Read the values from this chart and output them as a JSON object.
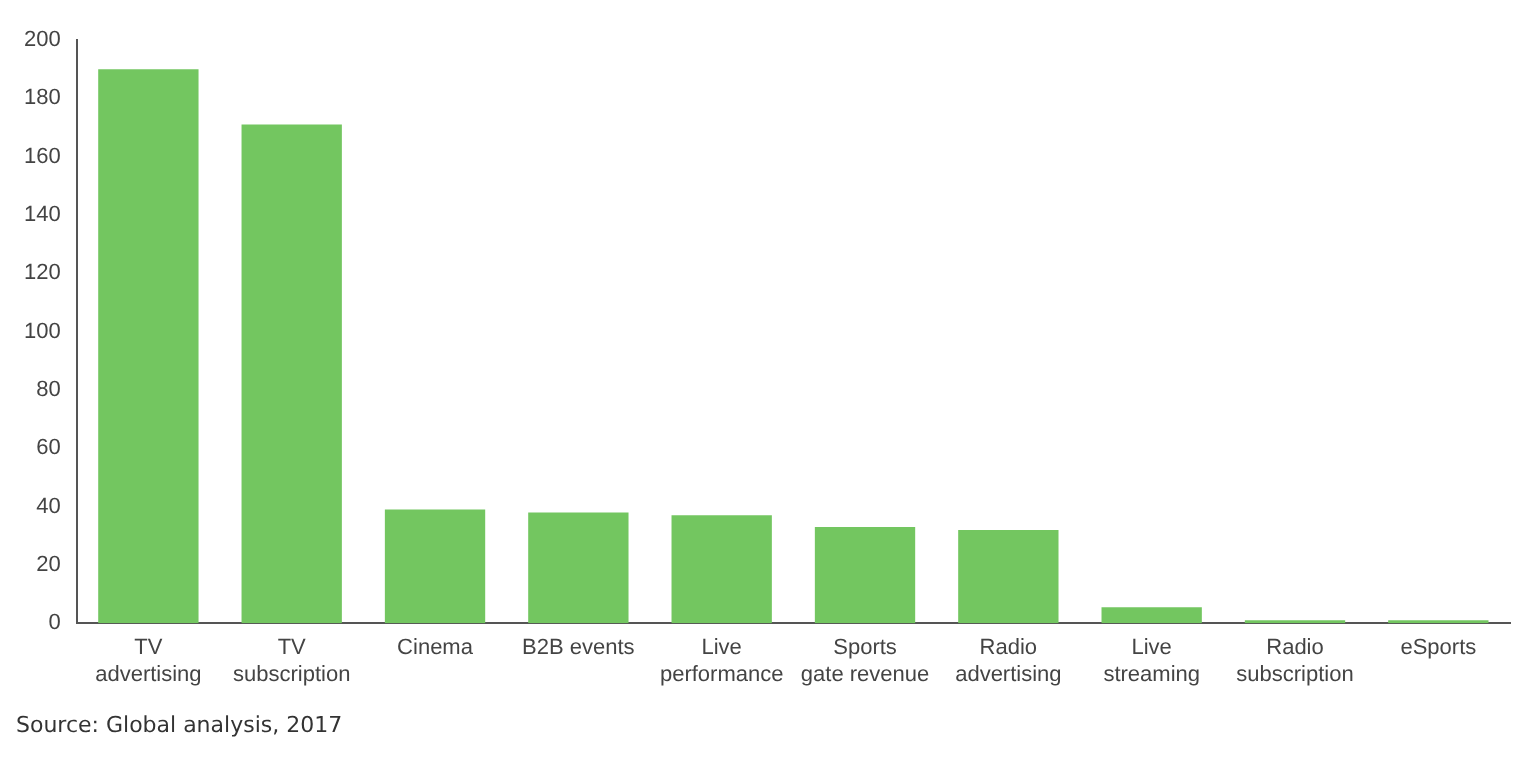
{
  "chart_data": {
    "type": "bar",
    "categories": [
      [
        "TV",
        "advertising"
      ],
      [
        "TV",
        "subscription"
      ],
      "Cinema",
      "B2B events",
      [
        "Live",
        "performance"
      ],
      [
        "Sports",
        "gate revenue"
      ],
      [
        "Radio",
        "advertising"
      ],
      [
        "Live",
        "streaming"
      ],
      [
        "Radio",
        "subscription"
      ],
      "eSports"
    ],
    "values": [
      190,
      171,
      39,
      38,
      37,
      33,
      32,
      5.5,
      1,
      1
    ],
    "color": "#73c660",
    "ylim": [
      0,
      200
    ],
    "yticks": [
      0,
      20,
      40,
      60,
      80,
      100,
      120,
      140,
      160,
      180,
      200
    ],
    "grid": false,
    "legend": false,
    "annotations": [
      "Source: Global analysis, 2017"
    ]
  }
}
